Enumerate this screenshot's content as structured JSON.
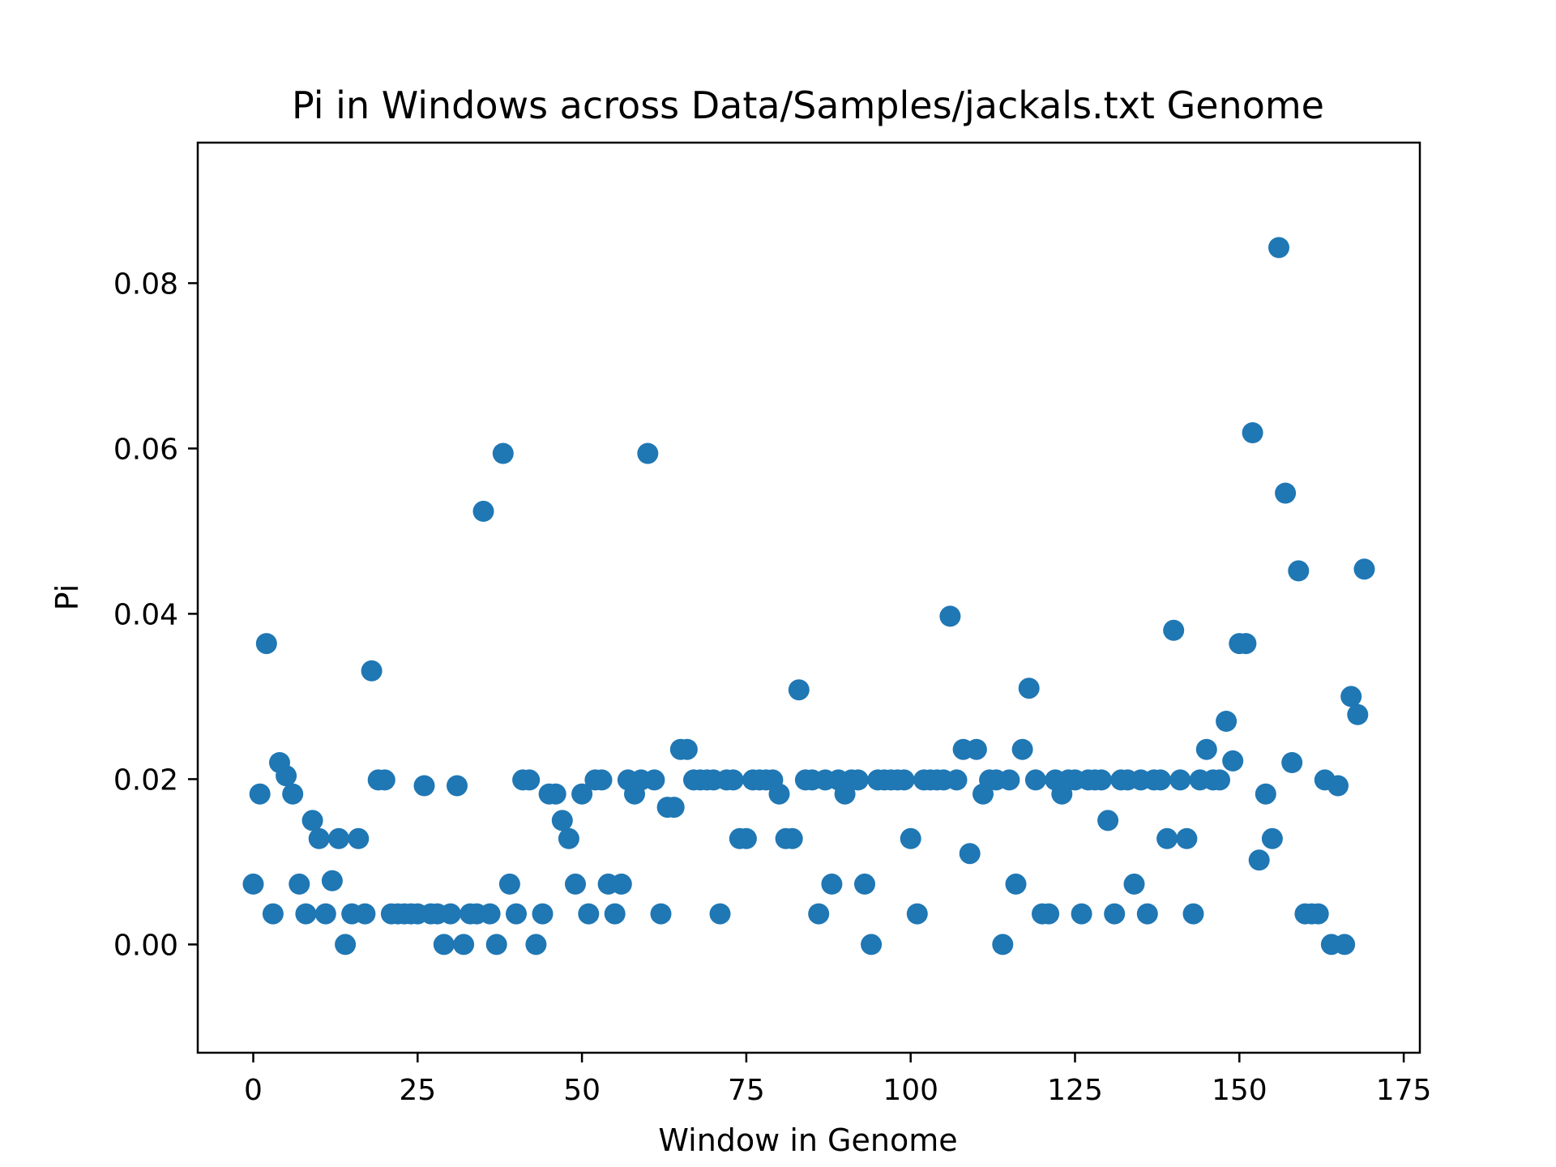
{
  "chart_data": {
    "type": "scatter",
    "title": "Pi in Windows across Data/Samples/jackals.txt Genome",
    "xlabel": "Window in Genome",
    "ylabel": "Pi",
    "xlim": [
      -8.45,
      177.45
    ],
    "ylim": [
      -0.0131,
      0.097
    ],
    "xticks": [
      0,
      25,
      50,
      75,
      100,
      125,
      150,
      175
    ],
    "xtick_labels": [
      "0",
      "25",
      "50",
      "75",
      "100",
      "125",
      "150",
      "175"
    ],
    "yticks": [
      0.0,
      0.02,
      0.04,
      0.06,
      0.08
    ],
    "ytick_labels": [
      "0.00",
      "0.02",
      "0.04",
      "0.06",
      "0.08"
    ],
    "grid": false,
    "color": "#1f77b4",
    "series": [
      {
        "x": [
          0,
          1,
          2,
          3,
          4,
          5,
          6,
          7,
          8,
          9,
          10,
          11,
          12,
          13,
          14,
          15,
          16,
          17,
          18,
          19,
          20,
          21,
          22,
          23,
          24,
          25,
          26,
          27,
          28,
          29,
          30,
          31,
          32,
          33,
          34,
          35,
          36,
          37,
          38,
          39,
          40,
          41,
          42,
          43,
          44,
          45,
          46,
          47,
          48,
          49,
          50,
          51,
          52,
          53,
          54,
          55,
          56,
          57,
          58,
          59,
          60,
          61,
          62,
          63,
          64,
          65,
          66,
          67,
          68,
          69,
          70,
          71,
          72,
          73,
          74,
          75,
          76,
          77,
          78,
          79,
          80,
          81,
          82,
          83,
          84,
          85,
          86,
          87,
          88,
          89,
          90,
          91,
          92,
          93,
          94,
          95,
          96,
          97,
          98,
          99,
          100,
          101,
          102,
          103,
          104,
          105,
          106,
          107,
          108,
          109,
          110,
          111,
          112,
          113,
          114,
          115,
          116,
          117,
          118,
          119,
          120,
          121,
          122,
          123,
          124,
          125,
          126,
          127,
          128,
          129,
          130,
          131,
          132,
          133,
          134,
          135,
          136,
          137,
          138,
          139,
          140,
          141,
          142,
          143,
          144,
          145,
          146,
          147,
          148,
          149,
          150,
          151,
          152,
          153,
          154,
          155,
          156,
          157,
          158,
          159,
          160,
          161,
          162,
          163,
          164,
          165,
          166,
          167,
          168,
          169
        ],
        "y": [
          0.0073,
          0.0182,
          0.0364,
          0.0037,
          0.022,
          0.0204,
          0.0182,
          0.0073,
          0.0037,
          0.015,
          0.0128,
          0.0037,
          0.0077,
          0.0128,
          0.0,
          0.0037,
          0.0128,
          0.0037,
          0.0331,
          0.0199,
          0.0199,
          0.0037,
          0.0037,
          0.0037,
          0.0037,
          0.0037,
          0.0192,
          0.0037,
          0.0037,
          0.0,
          0.0037,
          0.0192,
          0.0,
          0.0037,
          0.0037,
          0.0524,
          0.0037,
          0.0,
          0.0594,
          0.0073,
          0.0037,
          0.0199,
          0.0199,
          0.0,
          0.0037,
          0.0182,
          0.0182,
          0.015,
          0.0128,
          0.0073,
          0.0182,
          0.0037,
          0.0199,
          0.0199,
          0.0073,
          0.0037,
          0.0073,
          0.0199,
          0.0182,
          0.0199,
          0.0594,
          0.0199,
          0.0037,
          0.0166,
          0.0166,
          0.0236,
          0.0236,
          0.0199,
          0.0199,
          0.0199,
          0.0199,
          0.0037,
          0.0199,
          0.0199,
          0.0128,
          0.0128,
          0.0199,
          0.0199,
          0.0199,
          0.0199,
          0.0182,
          0.0128,
          0.0128,
          0.0308,
          0.0199,
          0.0199,
          0.0037,
          0.0199,
          0.0073,
          0.0199,
          0.0182,
          0.0199,
          0.0199,
          0.0073,
          0.0,
          0.0199,
          0.0199,
          0.0199,
          0.0199,
          0.0199,
          0.0128,
          0.0037,
          0.0199,
          0.0199,
          0.0199,
          0.0199,
          0.0397,
          0.0199,
          0.0236,
          0.011,
          0.0236,
          0.0182,
          0.0199,
          0.0199,
          0.0,
          0.0199,
          0.0073,
          0.0236,
          0.031,
          0.0199,
          0.0037,
          0.0037,
          0.0199,
          0.0182,
          0.0199,
          0.0199,
          0.0037,
          0.0199,
          0.0199,
          0.0199,
          0.015,
          0.0037,
          0.0199,
          0.0199,
          0.0073,
          0.0199,
          0.0037,
          0.0199,
          0.0199,
          0.0128,
          0.038,
          0.0199,
          0.0128,
          0.0037,
          0.0199,
          0.0236,
          0.0199,
          0.0199,
          0.027,
          0.0222,
          0.0364,
          0.0364,
          0.0619,
          0.0102,
          0.0182,
          0.0128,
          0.0843,
          0.0546,
          0.022,
          0.0452,
          0.0037,
          0.0037,
          0.0037,
          0.0199,
          0.0,
          0.0192,
          0.0,
          0.03,
          0.0278,
          0.0454
        ]
      }
    ]
  }
}
